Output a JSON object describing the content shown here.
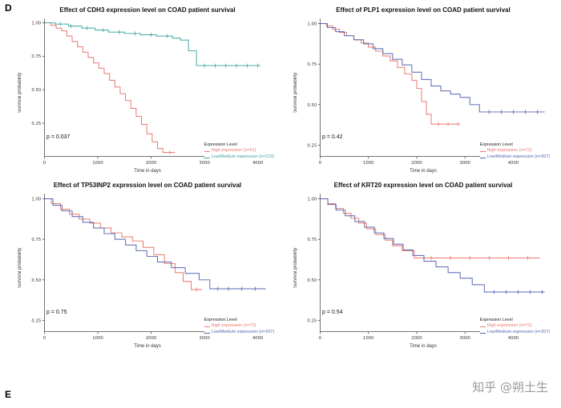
{
  "page": {
    "panel_label_top": "D",
    "panel_label_bottom": "E",
    "watermark": "知乎 @朔土生"
  },
  "colors": {
    "high_red": "#e8766c",
    "low_teal": "#3da59d",
    "low_blue": "#5565b2"
  },
  "chart_data": [
    {
      "type": "line",
      "subtype": "kaplan-meier",
      "title": "Effect of CDH3 expression level on COAD patient survival",
      "xlabel": "Time in days",
      "ylabel": "Survival probability",
      "p_value": "p = 0.037",
      "xlim": [
        0,
        4300
      ],
      "ylim": [
        0,
        1.03
      ],
      "xticks": [
        0,
        1000,
        2000,
        3000,
        4000
      ],
      "yticks": [
        0.25,
        0.5,
        0.75,
        1
      ],
      "legend": {
        "title": "Expression Level",
        "entries": [
          {
            "label": "High expression (n=51)",
            "color": "#e8766c"
          },
          {
            "label": "Low/Medium expression (n=219)",
            "color": "#3da59d"
          }
        ]
      },
      "series": [
        {
          "name": "High expression",
          "color": "#e8766c",
          "points": [
            [
              0,
              1.0
            ],
            [
              120,
              0.98
            ],
            [
              220,
              0.96
            ],
            [
              320,
              0.94
            ],
            [
              420,
              0.9
            ],
            [
              520,
              0.86
            ],
            [
              620,
              0.82
            ],
            [
              720,
              0.78
            ],
            [
              820,
              0.74
            ],
            [
              920,
              0.7
            ],
            [
              1020,
              0.66
            ],
            [
              1120,
              0.62
            ],
            [
              1220,
              0.57
            ],
            [
              1320,
              0.52
            ],
            [
              1420,
              0.47
            ],
            [
              1520,
              0.42
            ],
            [
              1620,
              0.36
            ],
            [
              1720,
              0.3
            ],
            [
              1820,
              0.24
            ],
            [
              1920,
              0.17
            ],
            [
              2020,
              0.11
            ],
            [
              2120,
              0.06
            ],
            [
              2220,
              0.03
            ],
            [
              2450,
              0.03
            ]
          ],
          "censor": [
            2350
          ]
        },
        {
          "name": "Low/Medium expression",
          "color": "#3da59d",
          "points": [
            [
              0,
              1.0
            ],
            [
              200,
              0.99
            ],
            [
              450,
              0.975
            ],
            [
              700,
              0.96
            ],
            [
              950,
              0.945
            ],
            [
              1200,
              0.93
            ],
            [
              1500,
              0.92
            ],
            [
              1800,
              0.91
            ],
            [
              2100,
              0.9
            ],
            [
              2400,
              0.885
            ],
            [
              2550,
              0.87
            ],
            [
              2700,
              0.79
            ],
            [
              2850,
              0.68
            ],
            [
              4050,
              0.68
            ]
          ],
          "censor": [
            300,
            500,
            800,
            1100,
            1400,
            1700,
            2000,
            2300,
            3000,
            3200,
            3400,
            3600,
            3800,
            4000
          ]
        }
      ]
    },
    {
      "type": "line",
      "subtype": "kaplan-meier",
      "title": "Effect of PLP1 expression level on COAD patient survival",
      "xlabel": "Time in days",
      "ylabel": "Survival probability",
      "p_value": "p = 0.42",
      "xlim": [
        0,
        4750
      ],
      "ylim": [
        0.18,
        1.03
      ],
      "xticks": [
        0,
        1000,
        2000,
        3000,
        4000
      ],
      "yticks": [
        0.25,
        0.5,
        0.75,
        1
      ],
      "legend": {
        "title": "Expression Level",
        "entries": [
          {
            "label": "High expression (n=72)",
            "color": "#e8766c"
          },
          {
            "label": "Low/Medium expression (n=207)",
            "color": "#5565b2"
          }
        ]
      },
      "series": [
        {
          "name": "High expression",
          "color": "#e8766c",
          "points": [
            [
              0,
              1.0
            ],
            [
              130,
              0.985
            ],
            [
              260,
              0.965
            ],
            [
              400,
              0.945
            ],
            [
              550,
              0.925
            ],
            [
              700,
              0.9
            ],
            [
              850,
              0.88
            ],
            [
              1000,
              0.855
            ],
            [
              1150,
              0.83
            ],
            [
              1300,
              0.8
            ],
            [
              1450,
              0.77
            ],
            [
              1600,
              0.73
            ],
            [
              1750,
              0.69
            ],
            [
              1900,
              0.65
            ],
            [
              2000,
              0.6
            ],
            [
              2100,
              0.52
            ],
            [
              2200,
              0.44
            ],
            [
              2300,
              0.38
            ],
            [
              2900,
              0.38
            ]
          ],
          "censor": [
            2450,
            2650,
            2850
          ]
        },
        {
          "name": "Low/Medium expression",
          "color": "#5565b2",
          "points": [
            [
              0,
              1.0
            ],
            [
              150,
              0.975
            ],
            [
              320,
              0.95
            ],
            [
              500,
              0.925
            ],
            [
              700,
              0.9
            ],
            [
              900,
              0.875
            ],
            [
              1100,
              0.845
            ],
            [
              1300,
              0.815
            ],
            [
              1500,
              0.78
            ],
            [
              1700,
              0.745
            ],
            [
              1900,
              0.7
            ],
            [
              2100,
              0.655
            ],
            [
              2300,
              0.615
            ],
            [
              2500,
              0.585
            ],
            [
              2700,
              0.565
            ],
            [
              2900,
              0.545
            ],
            [
              3100,
              0.5
            ],
            [
              3300,
              0.455
            ],
            [
              4650,
              0.455
            ]
          ],
          "censor": [
            3500,
            3750,
            4000,
            4250,
            4500
          ]
        }
      ]
    },
    {
      "type": "line",
      "subtype": "kaplan-meier",
      "title": "Effect of TP53INP2 expression level on COAD patient survival",
      "xlabel": "Time in days",
      "ylabel": "Survival probability",
      "p_value": "p = 0.75",
      "xlim": [
        0,
        4300
      ],
      "ylim": [
        0.18,
        1.03
      ],
      "xticks": [
        0,
        1000,
        2000,
        3000,
        4000
      ],
      "yticks": [
        0.25,
        0.5,
        0.75,
        1
      ],
      "legend": {
        "title": "Expression Level",
        "entries": [
          {
            "label": "High expression (n=72)",
            "color": "#e8766c"
          },
          {
            "label": "Low/Medium expression (n=207)",
            "color": "#5565b2"
          }
        ]
      },
      "series": [
        {
          "name": "High expression",
          "color": "#e8766c",
          "points": [
            [
              0,
              1.0
            ],
            [
              130,
              0.97
            ],
            [
              300,
              0.935
            ],
            [
              470,
              0.905
            ],
            [
              650,
              0.875
            ],
            [
              850,
              0.85
            ],
            [
              1050,
              0.82
            ],
            [
              1250,
              0.79
            ],
            [
              1450,
              0.765
            ],
            [
              1650,
              0.74
            ],
            [
              1850,
              0.7
            ],
            [
              2050,
              0.655
            ],
            [
              2250,
              0.6
            ],
            [
              2450,
              0.545
            ],
            [
              2600,
              0.49
            ],
            [
              2750,
              0.44
            ],
            [
              2950,
              0.44
            ]
          ],
          "censor": [
            2850
          ]
        },
        {
          "name": "Low/Medium expression",
          "color": "#5565b2",
          "points": [
            [
              0,
              1.0
            ],
            [
              160,
              0.96
            ],
            [
              330,
              0.925
            ],
            [
              520,
              0.89
            ],
            [
              720,
              0.855
            ],
            [
              920,
              0.82
            ],
            [
              1120,
              0.785
            ],
            [
              1320,
              0.75
            ],
            [
              1520,
              0.715
            ],
            [
              1720,
              0.68
            ],
            [
              1920,
              0.645
            ],
            [
              2120,
              0.61
            ],
            [
              2380,
              0.575
            ],
            [
              2640,
              0.54
            ],
            [
              2900,
              0.5
            ],
            [
              3100,
              0.445
            ],
            [
              4150,
              0.445
            ]
          ],
          "censor": [
            3250,
            3450,
            3700,
            3950
          ]
        }
      ]
    },
    {
      "type": "line",
      "subtype": "kaplan-meier",
      "title": "Effect of KRT20 expression level on COAD patient survival",
      "xlabel": "Time in days",
      "ylabel": "Survival probability",
      "p_value": "p = 0.54",
      "xlim": [
        0,
        4750
      ],
      "ylim": [
        0.18,
        1.03
      ],
      "xticks": [
        0,
        1000,
        2000,
        3000,
        4000
      ],
      "yticks": [
        0.25,
        0.5,
        0.75,
        1
      ],
      "legend": {
        "title": "Expression Level",
        "entries": [
          {
            "label": "High expression (n=72)",
            "color": "#e8766c"
          },
          {
            "label": "Low/Medium expression (n=207)",
            "color": "#5565b2"
          }
        ]
      },
      "series": [
        {
          "name": "High expression",
          "color": "#e8766c",
          "points": [
            [
              0,
              1.0
            ],
            [
              160,
              0.97
            ],
            [
              320,
              0.94
            ],
            [
              480,
              0.91
            ],
            [
              640,
              0.88
            ],
            [
              800,
              0.85
            ],
            [
              960,
              0.815
            ],
            [
              1150,
              0.78
            ],
            [
              1350,
              0.745
            ],
            [
              1500,
              0.71
            ],
            [
              1700,
              0.68
            ],
            [
              1950,
              0.635
            ],
            [
              4550,
              0.635
            ]
          ],
          "censor": [
            2300,
            2700,
            3100,
            3500,
            3900,
            4300
          ]
        },
        {
          "name": "Low/Medium expression",
          "color": "#5565b2",
          "points": [
            [
              0,
              1.0
            ],
            [
              160,
              0.965
            ],
            [
              330,
              0.93
            ],
            [
              520,
              0.895
            ],
            [
              720,
              0.86
            ],
            [
              920,
              0.825
            ],
            [
              1120,
              0.79
            ],
            [
              1320,
              0.755
            ],
            [
              1520,
              0.72
            ],
            [
              1720,
              0.685
            ],
            [
              1920,
              0.65
            ],
            [
              2150,
              0.615
            ],
            [
              2400,
              0.58
            ],
            [
              2650,
              0.545
            ],
            [
              2900,
              0.51
            ],
            [
              3150,
              0.47
            ],
            [
              3400,
              0.425
            ],
            [
              4650,
              0.425
            ]
          ],
          "censor": [
            3600,
            3850,
            4100,
            4350,
            4600
          ]
        }
      ]
    }
  ]
}
